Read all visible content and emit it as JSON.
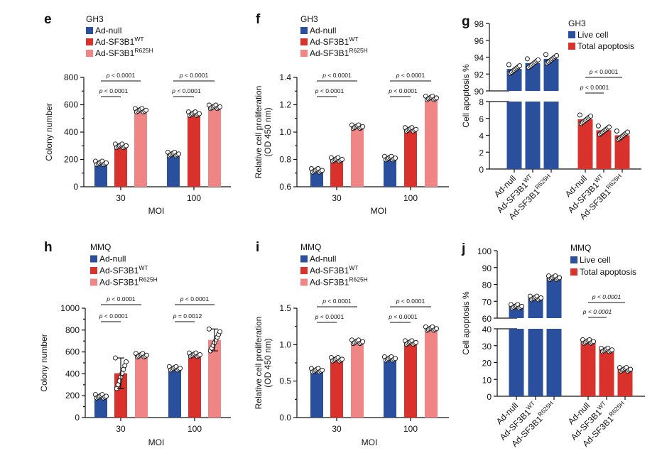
{
  "colors": {
    "ad_null": "#2a4f9c",
    "ad_sf3b1_wt": "#d9312b",
    "ad_sf3b1_r625h": "#ef8585",
    "live": "#2a4f9c",
    "apoptosis": "#d9312b"
  },
  "chart_data": [
    {
      "panel": "e",
      "type": "bar",
      "title": "GH3",
      "legend": [
        {
          "label": "Ad-null",
          "sup": ""
        },
        {
          "label": "Ad-SF3B1",
          "sup": "WT"
        },
        {
          "label": "Ad-SF3B1",
          "sup": "R625H"
        }
      ],
      "categories": [
        "30",
        "100"
      ],
      "xlabel": "MOI",
      "ylabel": [
        "Colony number"
      ],
      "ylim": [
        0,
        800
      ],
      "yticks": [
        0,
        200,
        400,
        600,
        800
      ],
      "series": [
        {
          "name": "Ad-null",
          "values": [
            175,
            240
          ]
        },
        {
          "name": "Ad-SF3B1 WT",
          "values": [
            300,
            535
          ]
        },
        {
          "name": "Ad-SF3B1 R625H",
          "values": [
            560,
            585
          ]
        }
      ],
      "comparisons": [
        {
          "category": "30",
          "from": 0,
          "to": 2,
          "label": "p < 0.0001"
        },
        {
          "category": "30",
          "from": 0,
          "to": 1,
          "label": "p < 0.0001"
        },
        {
          "category": "100",
          "from": 0,
          "to": 2,
          "label": "p < 0.0001"
        },
        {
          "category": "100",
          "from": 0,
          "to": 1,
          "label": "p < 0.0001"
        }
      ]
    },
    {
      "panel": "f",
      "type": "bar",
      "title": "GH3",
      "legend": [
        {
          "label": "Ad-null",
          "sup": ""
        },
        {
          "label": "Ad-SF3B1",
          "sup": "WT"
        },
        {
          "label": "Ad-SF3B1",
          "sup": "R625H"
        }
      ],
      "categories": [
        "30",
        "100"
      ],
      "xlabel": "MOI",
      "ylabel": [
        "Relative cell proliferation",
        "(OD 450 nm)"
      ],
      "ylim": [
        0.6,
        1.4
      ],
      "yticks": [
        "0.6",
        "0.8",
        "1.0",
        "1.2",
        "1.4"
      ],
      "series": [
        {
          "name": "Ad-null",
          "values": [
            0.72,
            0.81
          ]
        },
        {
          "name": "Ad-SF3B1 WT",
          "values": [
            0.8,
            1.02
          ]
        },
        {
          "name": "Ad-SF3B1 R625H",
          "values": [
            1.04,
            1.25
          ]
        }
      ],
      "comparisons": [
        {
          "category": "30",
          "from": 0,
          "to": 2,
          "label": "p < 0.0001"
        },
        {
          "category": "30",
          "from": 0,
          "to": 1,
          "label": "p < 0.0001"
        },
        {
          "category": "100",
          "from": 0,
          "to": 2,
          "label": "p < 0.0001"
        },
        {
          "category": "100",
          "from": 0,
          "to": 1,
          "label": "p < 0.0001"
        }
      ]
    },
    {
      "panel": "g",
      "type": "bar-broken-axis",
      "title": "GH3",
      "legend": [
        {
          "label": "Live cell",
          "sup": ""
        },
        {
          "label": "Total apoptosis",
          "sup": ""
        }
      ],
      "ylabel": [
        "Cell apoptosis %"
      ],
      "lower_ylim": [
        0,
        8
      ],
      "lower_yticks": [
        0,
        2,
        4,
        6,
        8
      ],
      "upper_ylim": [
        90,
        98
      ],
      "upper_yticks": [
        90,
        92,
        94,
        96,
        98
      ],
      "categories": [
        {
          "label": "Ad-null",
          "sup": ""
        },
        {
          "label": "Ad-SF3B1",
          "sup": "WT"
        },
        {
          "label": "Ad-SF3B1",
          "sup": "R625H"
        }
      ],
      "series": [
        {
          "name": "Live cell",
          "values": [
            92.6,
            93.3,
            93.8
          ]
        },
        {
          "name": "Total apoptosis",
          "values": [
            5.9,
            4.6,
            4.0
          ]
        }
      ],
      "comparisons": [
        {
          "series": "Total apoptosis",
          "from": 0,
          "to": 2,
          "label": "p < 0.0001"
        },
        {
          "series": "Total apoptosis",
          "from": 0,
          "to": 1,
          "label": "p < 0.0001"
        }
      ]
    },
    {
      "panel": "h",
      "type": "bar",
      "title": "MMQ",
      "legend": [
        {
          "label": "Ad-null",
          "sup": ""
        },
        {
          "label": "Ad-SF3B1",
          "sup": "WT"
        },
        {
          "label": "Ad-SF3B1",
          "sup": "R625H"
        }
      ],
      "categories": [
        "30",
        "100"
      ],
      "xlabel": "MOI",
      "ylabel": [
        "Colony number"
      ],
      "ylim": [
        0,
        1000
      ],
      "yticks": [
        0,
        200,
        400,
        600,
        800,
        1000
      ],
      "series": [
        {
          "name": "Ad-null",
          "values": [
            195,
            450
          ]
        },
        {
          "name": "Ad-SF3B1 WT",
          "values": [
            405,
            575
          ],
          "sd": [
            140,
            0
          ]
        },
        {
          "name": "Ad-SF3B1 R625H",
          "values": [
            570,
            710
          ],
          "sd": [
            0,
            100
          ]
        }
      ],
      "comparisons": [
        {
          "category": "30",
          "from": 0,
          "to": 2,
          "label": "p < 0.0001"
        },
        {
          "category": "30",
          "from": 0,
          "to": 1,
          "label": "p < 0.0001"
        },
        {
          "category": "100",
          "from": 0,
          "to": 2,
          "label": "p < 0.0001"
        },
        {
          "category": "100",
          "from": 0,
          "to": 1,
          "label": "p = 0.0012"
        }
      ]
    },
    {
      "panel": "i",
      "type": "bar",
      "title": "MMQ",
      "legend": [
        {
          "label": "Ad-null",
          "sup": ""
        },
        {
          "label": "Ad-SF3B1",
          "sup": "WT"
        },
        {
          "label": "Ad-SF3B1",
          "sup": "R625H"
        }
      ],
      "categories": [
        "30",
        "100"
      ],
      "xlabel": "MOI",
      "ylabel": [
        "Relative cell proliferation",
        "(OD 450 nm)"
      ],
      "ylim": [
        0,
        1.5
      ],
      "yticks": [
        "0.0",
        "0.5",
        "1.0",
        "1.5"
      ],
      "series": [
        {
          "name": "Ad-null",
          "values": [
            0.65,
            0.81
          ]
        },
        {
          "name": "Ad-SF3B1 WT",
          "values": [
            0.8,
            1.03
          ]
        },
        {
          "name": "Ad-SF3B1 R625H",
          "values": [
            1.04,
            1.22
          ]
        }
      ],
      "comparisons": [
        {
          "category": "30",
          "from": 0,
          "to": 2,
          "label": "p < 0.0001"
        },
        {
          "category": "30",
          "from": 0,
          "to": 1,
          "label": "p < 0.0001"
        },
        {
          "category": "100",
          "from": 0,
          "to": 2,
          "label": "p < 0.0001"
        },
        {
          "category": "100",
          "from": 0,
          "to": 1,
          "label": "p < 0.0001"
        }
      ]
    },
    {
      "panel": "j",
      "type": "bar-broken-axis",
      "title": "MMQ",
      "legend": [
        {
          "label": "Live cell",
          "sup": ""
        },
        {
          "label": "Total apoptosis",
          "sup": ""
        }
      ],
      "ylabel": [
        "Cell apoptosis %"
      ],
      "lower_ylim": [
        0,
        40
      ],
      "lower_yticks": [
        0,
        10,
        20,
        30,
        40
      ],
      "upper_ylim": [
        60,
        100
      ],
      "upper_yticks": [
        60,
        70,
        80,
        90,
        100
      ],
      "categories": [
        {
          "label": "Ad-null",
          "sup": ""
        },
        {
          "label": "Ad-SF3B1",
          "sup": "WT"
        },
        {
          "label": "Ad-SF3B1",
          "sup": "R625H"
        }
      ],
      "series": [
        {
          "name": "Live cell",
          "values": [
            67,
            72,
            84
          ]
        },
        {
          "name": "Total apoptosis",
          "values": [
            32.5,
            27.5,
            16
          ]
        }
      ],
      "comparisons": [
        {
          "series": "Total apoptosis",
          "from": 0,
          "to": 2,
          "label": "p < 0.0001",
          "italic": true
        },
        {
          "series": "Total apoptosis",
          "from": 0,
          "to": 1,
          "label": "p < 0.0001",
          "italic": true
        }
      ]
    }
  ]
}
